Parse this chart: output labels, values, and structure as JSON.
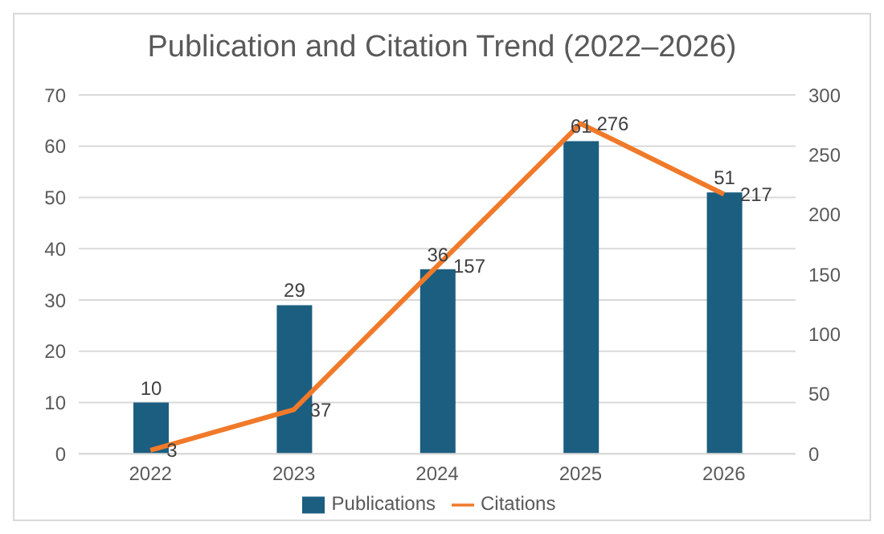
{
  "chart_data": {
    "type": "bar",
    "title": "Publication and Citation Trend (2022–2026)",
    "categories": [
      "2022",
      "2023",
      "2024",
      "2025",
      "2026"
    ],
    "series": [
      {
        "name": "Publications",
        "color": "#1b5e80",
        "values": [
          10,
          29,
          36,
          61,
          51
        ]
      },
      {
        "name": "Citations",
        "type": "line",
        "axis": "y2",
        "color": "#f07a2a",
        "values": [
          3,
          37,
          157,
          276,
          217
        ]
      }
    ],
    "ylim": [
      0,
      70
    ],
    "yticks": [
      0,
      10,
      20,
      30,
      40,
      50,
      60,
      70
    ],
    "y2lim": [
      0,
      300
    ],
    "y2ticks": [
      0,
      50,
      100,
      150,
      200,
      250,
      300
    ],
    "grid": "y",
    "legend": "bottom",
    "data_labels": true
  }
}
